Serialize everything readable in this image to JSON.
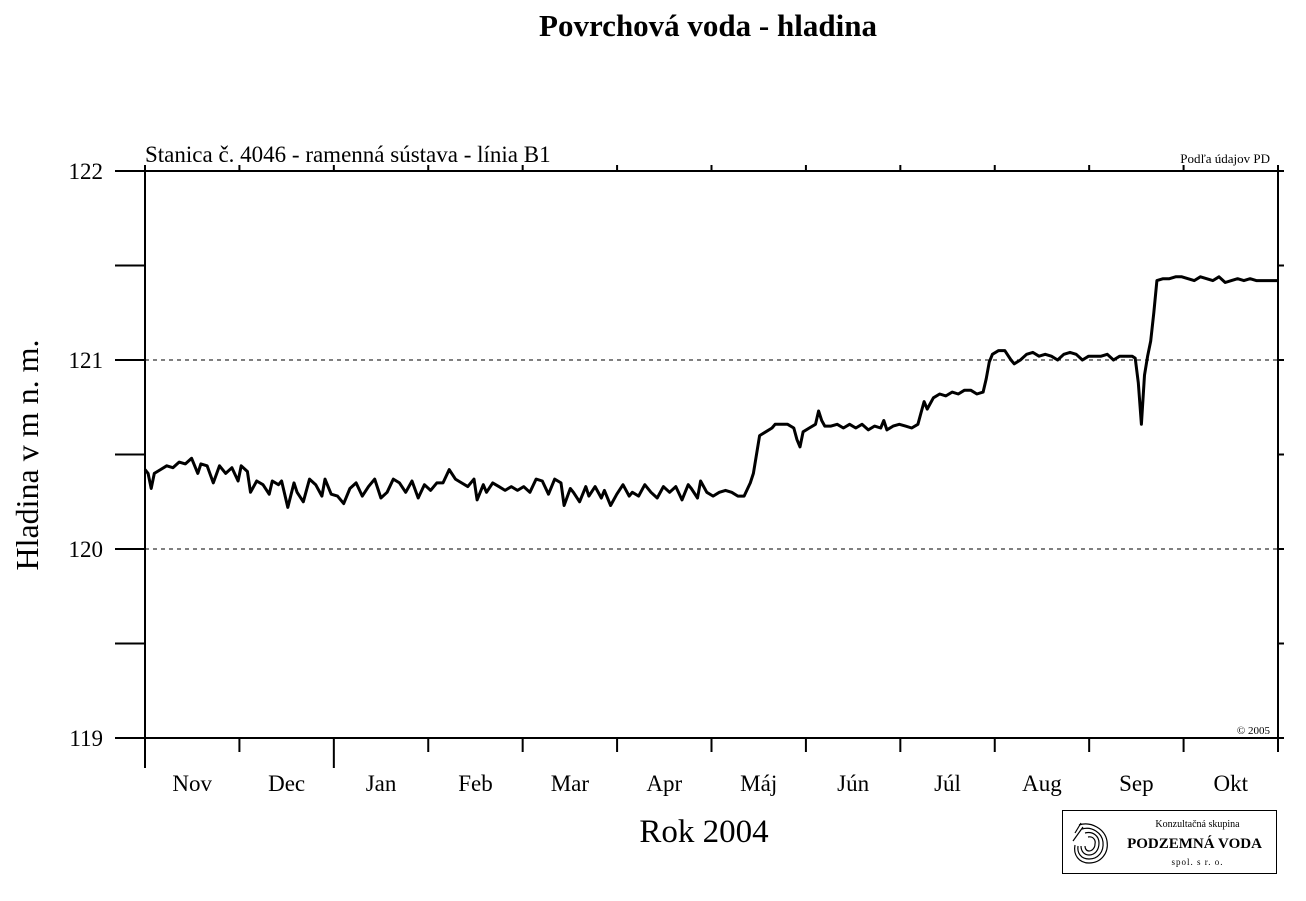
{
  "chart_data": {
    "type": "line",
    "title": "Povrchová voda - hladina",
    "subtitle": "Stanica č. 4046 - ramenná sústava - línia B1",
    "source_note": "Podľa údajov PD",
    "copyright": "© 2005",
    "xlabel": "Rok 2004",
    "ylabel": "Hladina v m n. m.",
    "ylim": [
      119,
      122
    ],
    "y_ticks": [
      "119",
      "120",
      "121",
      "122"
    ],
    "dashed_gridlines_at": [
      120,
      121
    ],
    "x_month_labels": [
      "Nov",
      "Dec",
      "Jan",
      "Feb",
      "Mar",
      "Apr",
      "Máj",
      "Jún",
      "Júl",
      "Aug",
      "Sep",
      "Okt"
    ],
    "x_unit": "days from 1 Nov (12 months)",
    "xlim": [
      0,
      365
    ],
    "series": [
      {
        "segments": [
          [
            [
              0,
              120.42
            ],
            [
              1,
              120.4
            ],
            [
              2,
              120.32
            ],
            [
              3,
              120.4
            ],
            [
              5,
              120.42
            ],
            [
              7,
              120.44
            ],
            [
              9,
              120.43
            ],
            [
              11,
              120.46
            ],
            [
              13,
              120.45
            ],
            [
              15,
              120.48
            ],
            [
              17,
              120.4
            ],
            [
              18,
              120.45
            ],
            [
              20,
              120.44
            ],
            [
              22,
              120.35
            ],
            [
              24,
              120.44
            ],
            [
              26,
              120.4
            ],
            [
              28,
              120.43
            ],
            [
              30,
              120.36
            ],
            [
              31,
              120.44
            ],
            [
              33,
              120.41
            ],
            [
              34,
              120.3
            ],
            [
              36,
              120.36
            ],
            [
              38,
              120.34
            ],
            [
              40,
              120.29
            ],
            [
              41,
              120.36
            ],
            [
              43,
              120.34
            ],
            [
              44,
              120.36
            ],
            [
              46,
              120.22
            ],
            [
              48,
              120.35
            ],
            [
              49,
              120.3
            ],
            [
              51,
              120.25
            ],
            [
              53,
              120.37
            ],
            [
              55,
              120.34
            ],
            [
              57,
              120.28
            ],
            [
              58,
              120.37
            ],
            [
              60,
              120.29
            ],
            [
              62,
              120.28
            ],
            [
              64,
              120.24
            ],
            [
              66,
              120.32
            ],
            [
              68,
              120.35
            ],
            [
              70,
              120.28
            ],
            [
              72,
              120.33
            ],
            [
              74,
              120.37
            ],
            [
              76,
              120.27
            ],
            [
              78,
              120.3
            ],
            [
              80,
              120.37
            ],
            [
              82,
              120.35
            ],
            [
              84,
              120.3
            ],
            [
              86,
              120.36
            ],
            [
              88,
              120.27
            ],
            [
              90,
              120.34
            ],
            [
              92,
              120.31
            ],
            [
              94,
              120.35
            ],
            [
              96,
              120.35
            ],
            [
              98,
              120.42
            ],
            [
              100,
              120.37
            ],
            [
              102,
              120.35
            ],
            [
              104,
              120.33
            ],
            [
              106,
              120.37
            ],
            [
              107,
              120.26
            ],
            [
              109,
              120.34
            ],
            [
              110,
              120.3
            ],
            [
              112,
              120.35
            ],
            [
              114,
              120.33
            ],
            [
              116,
              120.31
            ],
            [
              118,
              120.33
            ],
            [
              120,
              120.31
            ],
            [
              122,
              120.33
            ],
            [
              124,
              120.3
            ],
            [
              126,
              120.37
            ],
            [
              128,
              120.36
            ],
            [
              130,
              120.29
            ],
            [
              132,
              120.37
            ],
            [
              134,
              120.35
            ],
            [
              135,
              120.23
            ],
            [
              137,
              120.32
            ],
            [
              138,
              120.3
            ],
            [
              140,
              120.25
            ],
            [
              142,
              120.33
            ],
            [
              143,
              120.28
            ],
            [
              145,
              120.33
            ],
            [
              147,
              120.27
            ],
            [
              148,
              120.31
            ],
            [
              150,
              120.23
            ],
            [
              152,
              120.29
            ],
            [
              154,
              120.34
            ],
            [
              156,
              120.28
            ],
            [
              157,
              120.3
            ],
            [
              159,
              120.28
            ],
            [
              161,
              120.34
            ],
            [
              163,
              120.3
            ],
            [
              165,
              120.27
            ],
            [
              167,
              120.33
            ],
            [
              169,
              120.3
            ],
            [
              171,
              120.33
            ],
            [
              173,
              120.26
            ],
            [
              175,
              120.34
            ],
            [
              176,
              120.32
            ],
            [
              178,
              120.27
            ],
            [
              179,
              120.36
            ],
            [
              181,
              120.3
            ],
            [
              183,
              120.28
            ],
            [
              185,
              120.3
            ],
            [
              187,
              120.31
            ],
            [
              189,
              120.3
            ],
            [
              191,
              120.28
            ],
            [
              193,
              120.28
            ],
            [
              195,
              120.35
            ],
            [
              196,
              120.4
            ],
            [
              197,
              120.5
            ],
            [
              198,
              120.6
            ],
            [
              200,
              120.62
            ],
            [
              202,
              120.64
            ],
            [
              203,
              120.66
            ],
            [
              205,
              120.66
            ],
            [
              207,
              120.66
            ],
            [
              209,
              120.64
            ],
            [
              210,
              120.58
            ],
            [
              211,
              120.54
            ],
            [
              212,
              120.62
            ],
            [
              214,
              120.64
            ],
            [
              216,
              120.66
            ],
            [
              217,
              120.73
            ],
            [
              218,
              120.68
            ],
            [
              219,
              120.65
            ],
            [
              221,
              120.65
            ],
            [
              223,
              120.66
            ],
            [
              225,
              120.64
            ],
            [
              227,
              120.66
            ],
            [
              229,
              120.64
            ],
            [
              231,
              120.66
            ],
            [
              233,
              120.63
            ],
            [
              235,
              120.65
            ],
            [
              237,
              120.64
            ],
            [
              238,
              120.68
            ],
            [
              239,
              120.63
            ],
            [
              241,
              120.65
            ],
            [
              243,
              120.66
            ],
            [
              245,
              120.65
            ],
            [
              247,
              120.64
            ],
            [
              249,
              120.66
            ],
            [
              250,
              120.72
            ],
            [
              251,
              120.78
            ],
            [
              252,
              120.74
            ],
            [
              254,
              120.8
            ],
            [
              256,
              120.82
            ],
            [
              258,
              120.81
            ],
            [
              260,
              120.83
            ],
            [
              262,
              120.82
            ],
            [
              264,
              120.84
            ],
            [
              266,
              120.84
            ],
            [
              268,
              120.82
            ],
            [
              270,
              120.83
            ],
            [
              271,
              120.9
            ],
            [
              272,
              120.99
            ],
            [
              273,
              121.03
            ],
            [
              275,
              121.05
            ],
            [
              277,
              121.05
            ],
            [
              279,
              121.0
            ],
            [
              280,
              120.98
            ],
            [
              282,
              121.0
            ],
            [
              284,
              121.03
            ],
            [
              286,
              121.04
            ],
            [
              288,
              121.02
            ],
            [
              290,
              121.03
            ],
            [
              292,
              121.02
            ],
            [
              294,
              121.0
            ],
            [
              296,
              121.03
            ],
            [
              298,
              121.04
            ],
            [
              300,
              121.03
            ],
            [
              302,
              121.0
            ],
            [
              304,
              121.02
            ],
            [
              306,
              121.02
            ],
            [
              308,
              121.02
            ],
            [
              310,
              121.03
            ],
            [
              312,
              121.0
            ],
            [
              314,
              121.02
            ],
            [
              316,
              121.02
            ],
            [
              318,
              121.02
            ],
            [
              319,
              121.01
            ],
            [
              320,
              120.88
            ],
            [
              321,
              120.66
            ],
            [
              322,
              120.92
            ],
            [
              323,
              121.02
            ],
            [
              324,
              121.1
            ],
            [
              325,
              121.25
            ],
            [
              326,
              121.42
            ],
            [
              328,
              121.43
            ],
            [
              330,
              121.43
            ],
            [
              332,
              121.44
            ],
            [
              334,
              121.44
            ],
            [
              336,
              121.43
            ],
            [
              338,
              121.42
            ],
            [
              340,
              121.44
            ],
            [
              342,
              121.43
            ],
            [
              344,
              121.42
            ],
            [
              346,
              121.44
            ],
            [
              348,
              121.41
            ],
            [
              350,
              121.42
            ],
            [
              352,
              121.43
            ],
            [
              354,
              121.42
            ],
            [
              356,
              121.43
            ],
            [
              358,
              121.42
            ],
            [
              360,
              121.42
            ],
            [
              362,
              121.42
            ],
            [
              365,
              121.42
            ]
          ]
        ]
      }
    ]
  }
}
